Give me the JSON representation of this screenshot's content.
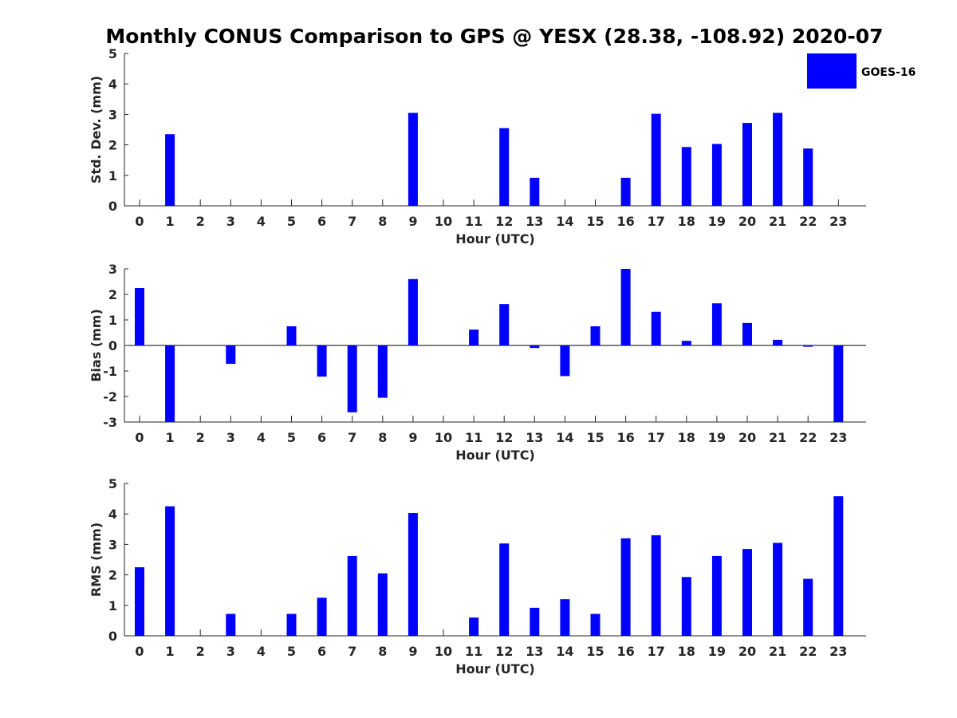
{
  "title": "Monthly CONUS Comparison to GPS @ YESX (28.38, -108.92) 2020-07",
  "legend": {
    "label": "GOES-16",
    "placement": "top-right"
  },
  "colors": {
    "bar": "#0000ff",
    "axis": "#262626",
    "text": "#262626"
  },
  "chart_data": [
    {
      "type": "bar",
      "xlabel": "Hour (UTC)",
      "ylabel": "Std. Dev. (mm)",
      "ylim": [
        0,
        5
      ],
      "yticks": [
        0,
        1,
        2,
        3,
        4,
        5
      ],
      "categories": [
        "0",
        "1",
        "2",
        "3",
        "4",
        "5",
        "6",
        "7",
        "8",
        "9",
        "10",
        "11",
        "12",
        "13",
        "14",
        "15",
        "16",
        "17",
        "18",
        "19",
        "20",
        "21",
        "22",
        "23"
      ],
      "series": [
        {
          "name": "GOES-16",
          "values": [
            null,
            2.35,
            null,
            null,
            null,
            null,
            null,
            null,
            null,
            3.05,
            null,
            null,
            2.55,
            0.92,
            null,
            null,
            0.92,
            3.02,
            1.93,
            2.03,
            2.72,
            3.05,
            1.88,
            null
          ]
        }
      ],
      "grid": false
    },
    {
      "type": "bar",
      "xlabel": "Hour (UTC)",
      "ylabel": "Bias (mm)",
      "ylim": [
        -3,
        3
      ],
      "yticks": [
        -3,
        -2,
        -1,
        0,
        1,
        2,
        3
      ],
      "categories": [
        "0",
        "1",
        "2",
        "3",
        "4",
        "5",
        "6",
        "7",
        "8",
        "9",
        "10",
        "11",
        "12",
        "13",
        "14",
        "15",
        "16",
        "17",
        "18",
        "19",
        "20",
        "21",
        "22",
        "23"
      ],
      "series": [
        {
          "name": "GOES-16",
          "values": [
            2.25,
            -3.0,
            null,
            -0.72,
            null,
            0.75,
            -1.22,
            -2.62,
            -2.05,
            2.6,
            null,
            0.62,
            1.62,
            -0.1,
            -1.2,
            0.75,
            3.0,
            1.32,
            0.18,
            1.65,
            0.88,
            0.22,
            -0.05,
            -3.0
          ]
        }
      ],
      "grid": false
    },
    {
      "type": "bar",
      "xlabel": "Hour (UTC)",
      "ylabel": "RMS (mm)",
      "ylim": [
        0,
        5
      ],
      "yticks": [
        0,
        1,
        2,
        3,
        4,
        5
      ],
      "categories": [
        "0",
        "1",
        "2",
        "3",
        "4",
        "5",
        "6",
        "7",
        "8",
        "9",
        "10",
        "11",
        "12",
        "13",
        "14",
        "15",
        "16",
        "17",
        "18",
        "19",
        "20",
        "21",
        "22",
        "23"
      ],
      "series": [
        {
          "name": "GOES-16",
          "values": [
            2.25,
            4.25,
            null,
            0.72,
            null,
            0.72,
            1.25,
            2.62,
            2.05,
            4.03,
            null,
            0.6,
            3.03,
            0.92,
            1.2,
            0.72,
            3.2,
            3.3,
            1.93,
            2.62,
            2.85,
            3.05,
            1.87,
            4.58
          ]
        }
      ],
      "grid": false
    }
  ]
}
